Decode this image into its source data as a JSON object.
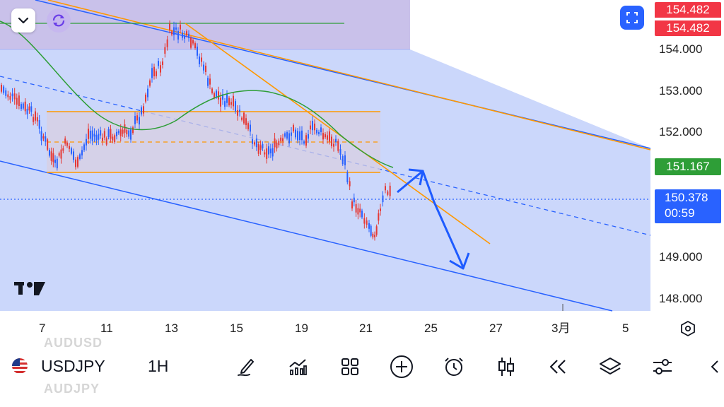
{
  "symbol": "USDJPY",
  "interval": "1H",
  "ghost_symbols": {
    "above": "AUDUSD",
    "below": "AUDJPY"
  },
  "price_axis": {
    "ticks": [
      "154.000",
      "153.000",
      "152.000",
      "149.000",
      "148.000"
    ],
    "tags": {
      "top_bid": "154.482",
      "top_ask": "154.482",
      "ma_value": "151.167",
      "current_price": "150.378",
      "countdown": "00:59"
    }
  },
  "time_axis": {
    "ticks": [
      "7",
      "11",
      "13",
      "15",
      "19",
      "21",
      "25",
      "27",
      "3月",
      "5"
    ]
  },
  "icons": {
    "collapse": "chevron-down-icon",
    "replay": "sync-icon",
    "fullscreen": "fullscreen-icon",
    "settings": "hexagon-settings-icon",
    "drawing": "pen-icon",
    "indicators": "indicators-icon",
    "layout": "grid-layout-icon",
    "add": "plus-circle-icon",
    "alert": "alarm-clock-icon",
    "chart_type": "candlestick-icon",
    "replay_bar": "rewind-icon",
    "layers": "layers-icon",
    "settings_bar": "sliders-icon",
    "scroll_left": "chevron-left-icon",
    "flag": "us-flag-icon",
    "logo": "tradingview-logo"
  },
  "colors": {
    "channel_fill": "#c9d6fb",
    "channel_line": "#2962ff",
    "resistance_zone": "#f9cdd3",
    "range_box": "#d8cfe2",
    "orange_line": "#ff9800",
    "ma_line": "#2e9e37",
    "bull_candle": "#2962ff",
    "bear_candle": "#e53935",
    "price_tag_red": "#f23645",
    "price_tag_green": "#2e9e37",
    "price_tag_blue": "#2962ff"
  }
}
